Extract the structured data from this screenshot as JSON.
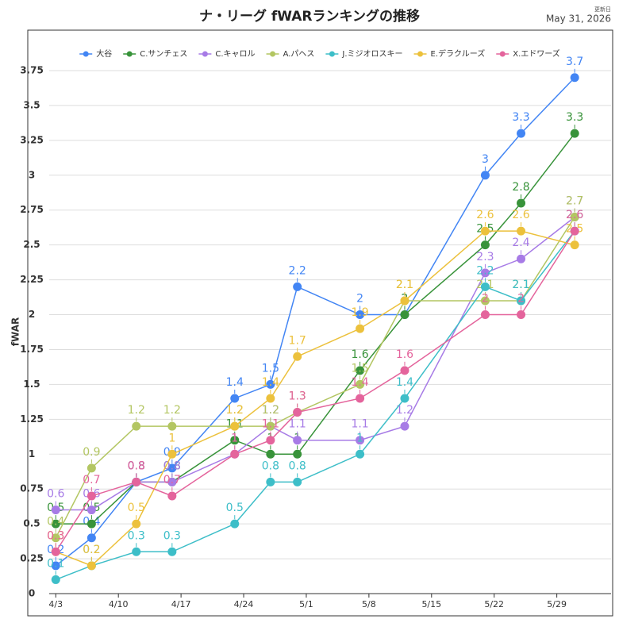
{
  "chart_data": {
    "type": "line",
    "title": "ナ・リーグ fWARランキングの推移",
    "update_label": "更新日",
    "update_date": "May 31, 2026",
    "ylabel": "fWAR",
    "x": [
      "4/3",
      "4/7",
      "4/12",
      "4/16",
      "4/23",
      "4/27",
      "4/30",
      "5/7",
      "5/12",
      "5/21",
      "5/25",
      "5/31"
    ],
    "xlim": [
      "4/2",
      "6/3"
    ],
    "xticks": [
      "4/3",
      "4/10",
      "4/17",
      "4/24",
      "5/1",
      "5/8",
      "5/15",
      "5/22",
      "5/29"
    ],
    "ylim": [
      0,
      3.75
    ],
    "yticks": [
      0,
      0.25,
      0.5,
      0.75,
      1,
      1.25,
      1.5,
      1.75,
      2,
      2.25,
      2.5,
      2.75,
      3,
      3.25,
      3.5,
      3.75
    ],
    "grid": true,
    "legend": "top",
    "series": [
      {
        "name": "大谷",
        "color": "#4285f4",
        "values": [
          0.2,
          0.4,
          0.8,
          0.9,
          1.4,
          1.5,
          2.2,
          2.0,
          2.0,
          3.0,
          3.3,
          3.7
        ]
      },
      {
        "name": "C.サンチェス",
        "color": "#38933a",
        "values": [
          0.5,
          0.5,
          0.8,
          0.8,
          1.1,
          1.0,
          1.0,
          1.6,
          2.0,
          2.5,
          2.8,
          3.3
        ]
      },
      {
        "name": "C.キャロル",
        "color": "#a77be6",
        "values": [
          0.6,
          0.6,
          0.8,
          0.8,
          1.0,
          1.2,
          1.1,
          1.1,
          1.2,
          2.3,
          2.4,
          2.7
        ]
      },
      {
        "name": "A.パヘス",
        "color": "#b3c662",
        "values": [
          0.4,
          0.9,
          1.2,
          1.2,
          1.2,
          1.2,
          1.3,
          1.5,
          2.1,
          2.1,
          2.1,
          2.7
        ]
      },
      {
        "name": "J.ミジオロスキー",
        "color": "#3dbec8",
        "values": [
          0.1,
          0.2,
          0.3,
          0.3,
          0.5,
          0.8,
          0.8,
          1.0,
          1.4,
          2.2,
          2.1,
          2.6
        ]
      },
      {
        "name": "E.デラクルーズ",
        "color": "#ecc13c",
        "values": [
          0.3,
          0.2,
          0.5,
          1.0,
          1.2,
          1.4,
          1.7,
          1.9,
          2.1,
          2.6,
          2.6,
          2.5
        ]
      },
      {
        "name": "X.エドワーズ",
        "color": "#e4649c",
        "values": [
          0.3,
          0.7,
          0.8,
          0.7,
          1.0,
          1.1,
          1.3,
          1.4,
          1.6,
          2.0,
          2.0,
          2.6
        ]
      }
    ]
  }
}
